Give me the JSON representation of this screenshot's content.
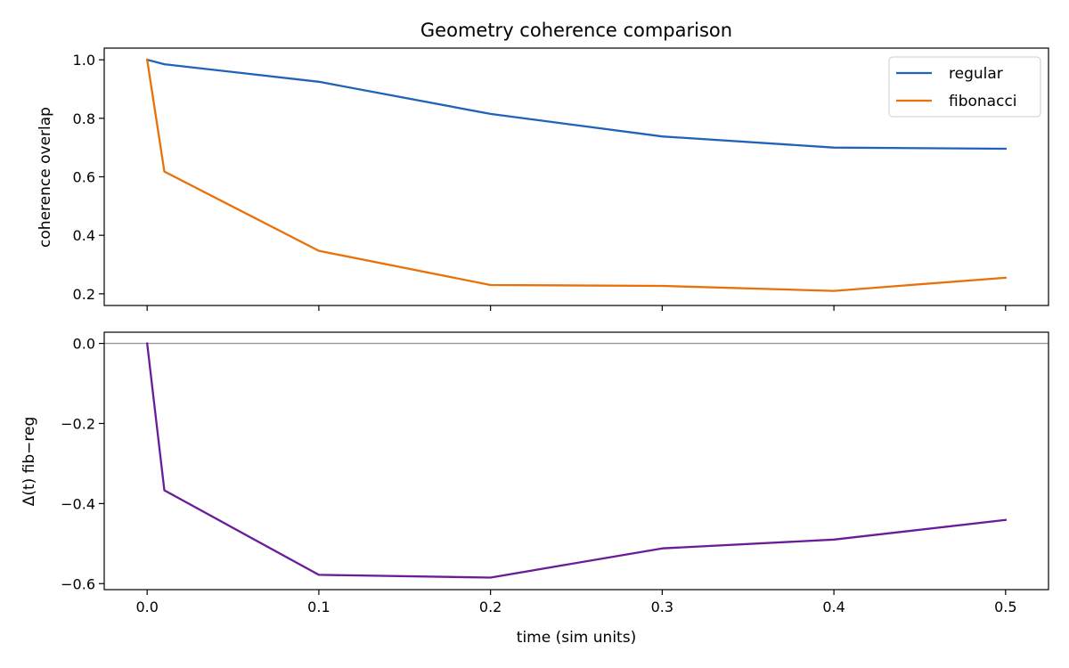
{
  "chart_data": [
    {
      "type": "line",
      "title": "Geometry coherence comparison",
      "xlabel": "",
      "ylabel": "coherence overlap",
      "xlim": [
        -0.025,
        0.525
      ],
      "ylim": [
        0.16,
        1.04
      ],
      "xticks": [
        0.0,
        0.1,
        0.2,
        0.3,
        0.4,
        0.5
      ],
      "xtick_labels": [
        "",
        "",
        "",
        "",
        "",
        ""
      ],
      "yticks": [
        0.2,
        0.4,
        0.6,
        0.8,
        1.0
      ],
      "ytick_labels": [
        "0.2",
        "0.4",
        "0.6",
        "0.8",
        "1.0"
      ],
      "grid": false,
      "legend": "top-right",
      "x": [
        0.0,
        0.01,
        0.1,
        0.2,
        0.3,
        0.4,
        0.5
      ],
      "series": [
        {
          "name": "regular",
          "color": "#1f62b8",
          "values": [
            1.0,
            0.985,
            0.925,
            0.815,
            0.738,
            0.7,
            0.696
          ]
        },
        {
          "name": "fibonacci",
          "color": "#e8710a",
          "values": [
            1.0,
            0.618,
            0.347,
            0.23,
            0.227,
            0.21,
            0.255
          ]
        }
      ]
    },
    {
      "type": "line",
      "title": "",
      "xlabel": "time (sim units)",
      "ylabel": "Δ(t) fib−reg",
      "xlim": [
        -0.025,
        0.525
      ],
      "ylim": [
        -0.615,
        0.028
      ],
      "xticks": [
        0.0,
        0.1,
        0.2,
        0.3,
        0.4,
        0.5
      ],
      "xtick_labels": [
        "0.0",
        "0.1",
        "0.2",
        "0.3",
        "0.4",
        "0.5"
      ],
      "yticks": [
        0.0,
        -0.2,
        -0.4,
        -0.6
      ],
      "ytick_labels": [
        "0.0",
        "−0.2",
        "−0.4",
        "−0.6"
      ],
      "grid": false,
      "reference_line": {
        "y": 0.0,
        "color": "#999999"
      },
      "x": [
        0.0,
        0.01,
        0.1,
        0.2,
        0.3,
        0.4,
        0.5
      ],
      "series": [
        {
          "color": "#6a1b9a",
          "values": [
            0.0,
            -0.367,
            -0.578,
            -0.585,
            -0.512,
            -0.49,
            -0.441
          ]
        }
      ]
    }
  ]
}
